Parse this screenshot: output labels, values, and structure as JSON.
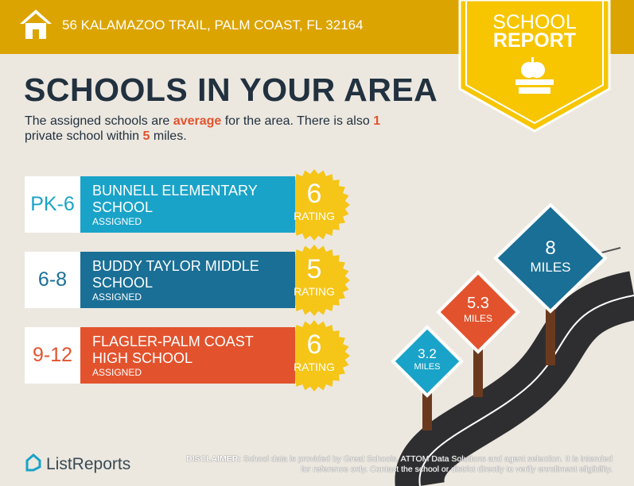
{
  "header": {
    "address": "56 KALAMAZOO TRAIL, PALM COAST, FL 32164"
  },
  "badge": {
    "line1": "SCHOOL",
    "line2": "REPORT"
  },
  "title": "SCHOOLS IN YOUR AREA",
  "intro": [
    "The assigned schools are ",
    "average",
    " for the area. There is also ",
    "1",
    " private school within ",
    "5",
    " miles."
  ],
  "schools": [
    {
      "grades": "PK-6",
      "name": "BUNNELL ELEMENTARY SCHOOL",
      "status": "ASSIGNED",
      "rating": 6,
      "rating_label": "RATING"
    },
    {
      "grades": "6-8",
      "name": "BUDDY TAYLOR MIDDLE SCHOOL",
      "status": "ASSIGNED",
      "rating": 5,
      "rating_label": "RATING"
    },
    {
      "grades": "9-12",
      "name": "FLAGLER-PALM COAST HIGH SCHOOL",
      "status": "ASSIGNED",
      "rating": 6,
      "rating_label": "RATING"
    }
  ],
  "distances": [
    {
      "value": "3.2",
      "unit": "MILES"
    },
    {
      "value": "5.3",
      "unit": "MILES"
    },
    {
      "value": "8",
      "unit": "MILES"
    }
  ],
  "footer": {
    "logo": "ListReports",
    "disclaimer_label": "DISCLAIMER:",
    "disclaimer_text": "School data is provided by Great Schools, ATTOM Data Solutions and agent selection. It is intended for reference only. Contact the school or district directly to verify enrollment eligibility."
  }
}
